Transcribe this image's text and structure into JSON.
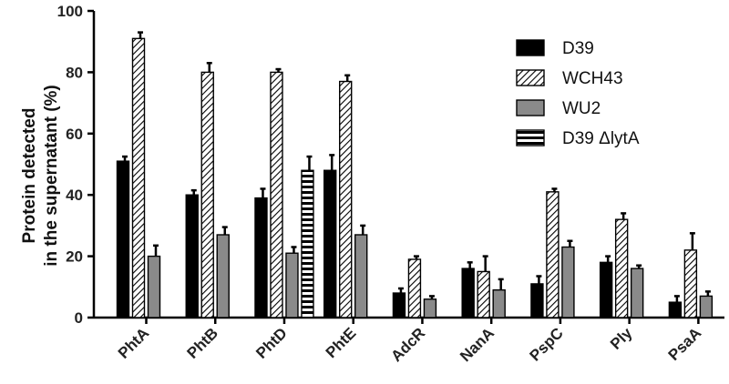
{
  "chart_data": {
    "type": "bar",
    "title": "",
    "xlabel": "",
    "ylabel_lines": [
      "Protein detected",
      "in the supernatant  (%)"
    ],
    "ylim": [
      0,
      100
    ],
    "yticks": [
      "0",
      "20",
      "40",
      "60",
      "80",
      "100"
    ],
    "categories": [
      "PhtA",
      "PhtB",
      "PhtD",
      "PhtE",
      "AdcR",
      "NanA",
      "PspC",
      "Ply",
      "PsaA"
    ],
    "legend_position": "top-right",
    "grid": false,
    "series": [
      {
        "name": "D39",
        "pattern": "solid-black",
        "values": [
          51,
          40,
          39,
          48,
          8,
          16,
          11,
          18,
          5
        ],
        "errors": [
          1.5,
          1.5,
          3,
          5,
          1.5,
          2,
          2.5,
          2,
          2
        ]
      },
      {
        "name": "WCH43",
        "pattern": "hatched",
        "values": [
          91,
          80,
          80,
          77,
          19,
          15,
          41,
          32,
          22
        ],
        "errors": [
          2,
          3,
          1,
          2,
          1,
          5,
          1,
          2,
          5.5
        ]
      },
      {
        "name": "WU2",
        "pattern": "solid-gray",
        "values": [
          20,
          27,
          21,
          27,
          6,
          9,
          23,
          16,
          7
        ],
        "errors": [
          3.5,
          2.5,
          2,
          3,
          1,
          3.5,
          2,
          1,
          1.5
        ]
      },
      {
        "name": "D39 ΔlytA",
        "pattern": "horizontal-stripes",
        "values": [
          null,
          null,
          48,
          null,
          null,
          null,
          null,
          null,
          null
        ],
        "errors": [
          null,
          null,
          4.5,
          null,
          null,
          null,
          null,
          null,
          null
        ]
      }
    ]
  }
}
